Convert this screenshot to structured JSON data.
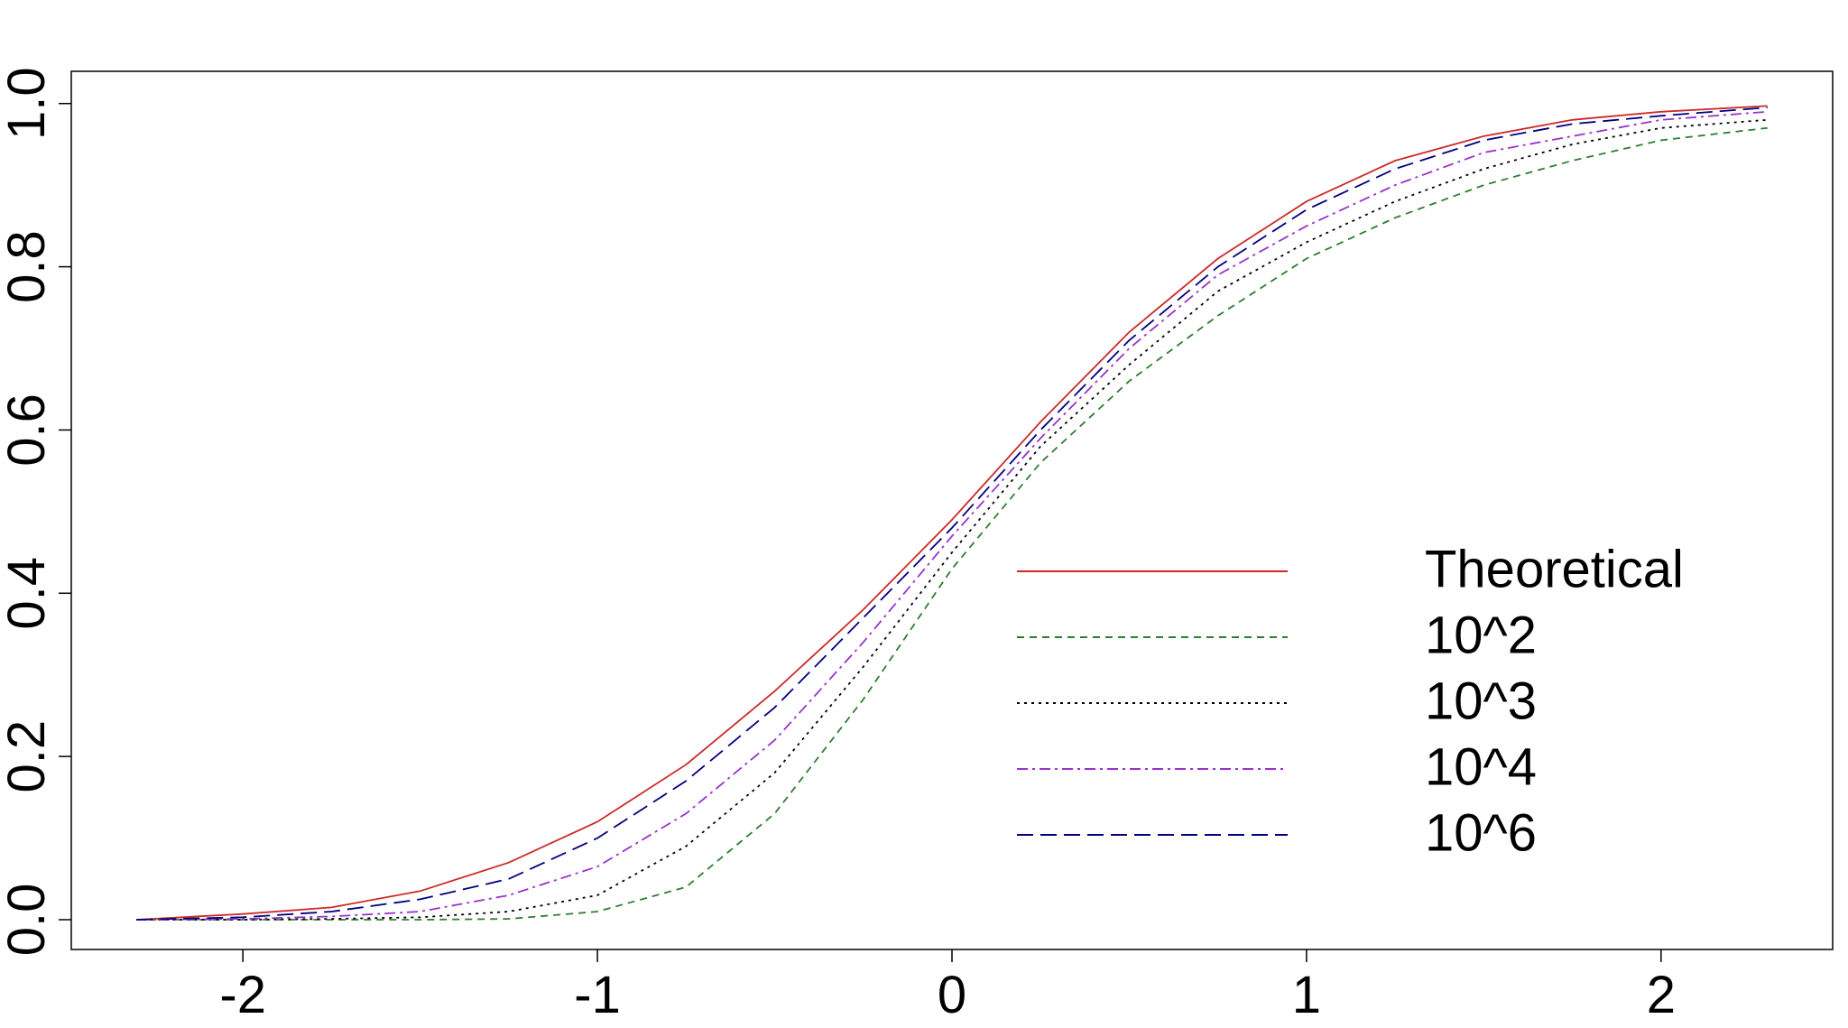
{
  "chart_data": {
    "type": "line",
    "x": [
      -2.3,
      -2.0,
      -1.75,
      -1.5,
      -1.25,
      -1.0,
      -0.75,
      -0.5,
      -0.25,
      0,
      0.25,
      0.5,
      0.75,
      1.0,
      1.25,
      1.5,
      1.75,
      2.0,
      2.3
    ],
    "series": [
      {
        "name": "Theoretical",
        "color": "#cc2a2a",
        "values": [
          0.0,
          0.007,
          0.015,
          0.035,
          0.07,
          0.12,
          0.19,
          0.28,
          0.38,
          0.49,
          0.61,
          0.72,
          0.81,
          0.88,
          0.93,
          0.96,
          0.98,
          0.99,
          0.997
        ]
      },
      {
        "name": "10^2",
        "color": "#2e7d32",
        "values": [
          0.0,
          0.0,
          0.0,
          0.0,
          0.001,
          0.01,
          0.04,
          0.13,
          0.27,
          0.43,
          0.56,
          0.66,
          0.74,
          0.81,
          0.86,
          0.9,
          0.93,
          0.955,
          0.97
        ]
      },
      {
        "name": "10^3",
        "color": "#000000",
        "values": [
          0.0,
          0.0,
          0.001,
          0.003,
          0.01,
          0.03,
          0.09,
          0.18,
          0.31,
          0.45,
          0.58,
          0.68,
          0.77,
          0.83,
          0.88,
          0.92,
          0.95,
          0.97,
          0.98
        ]
      },
      {
        "name": "10^4",
        "color": "#9932cc",
        "values": [
          0.0,
          0.001,
          0.004,
          0.01,
          0.03,
          0.065,
          0.13,
          0.22,
          0.34,
          0.47,
          0.59,
          0.7,
          0.79,
          0.85,
          0.9,
          0.94,
          0.96,
          0.98,
          0.99
        ]
      },
      {
        "name": "10^6",
        "color": "#000080",
        "values": [
          0.0,
          0.003,
          0.01,
          0.025,
          0.05,
          0.1,
          0.17,
          0.26,
          0.37,
          0.48,
          0.6,
          0.71,
          0.8,
          0.87,
          0.92,
          0.955,
          0.975,
          0.985,
          0.995
        ]
      }
    ],
    "xlim": [
      -2.484,
      2.484
    ],
    "xticks": [
      -2,
      -1,
      0,
      1,
      2
    ],
    "ylim": [
      -0.0365,
      1.0395
    ],
    "yticks": [
      {
        "value": 0,
        "label": "0.0"
      },
      {
        "value": 0.2,
        "label": "0.2"
      },
      {
        "value": 0.4,
        "label": "0.4"
      },
      {
        "value": 0.6,
        "label": "0.6"
      },
      {
        "value": 0.8,
        "label": "0.8"
      },
      {
        "value": 1,
        "label": "1.0"
      }
    ],
    "legend": "bottom-right"
  }
}
